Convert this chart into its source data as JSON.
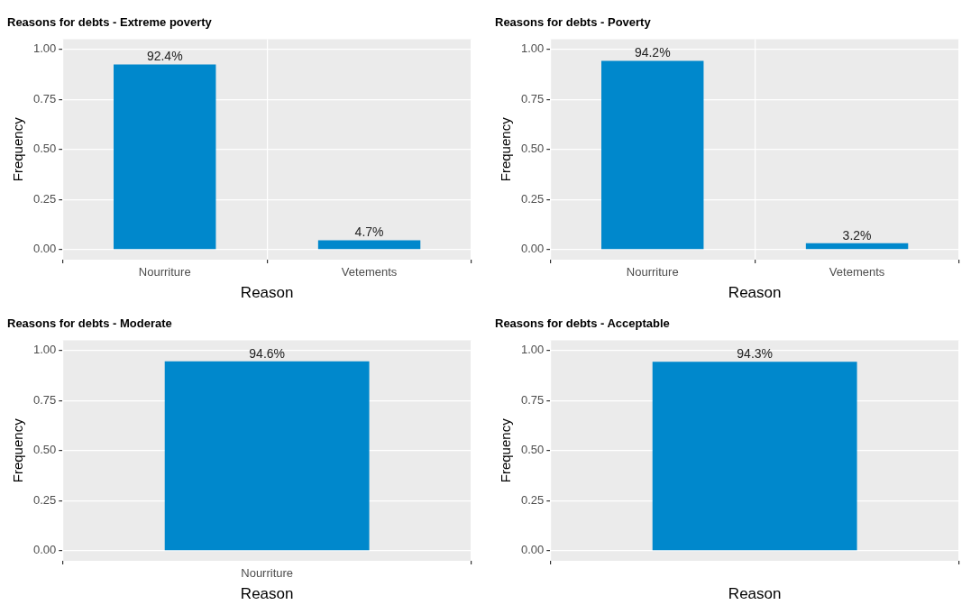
{
  "chart_data": [
    {
      "type": "bar",
      "title": "Reasons for debts - Extreme poverty",
      "xlabel": "Reason",
      "ylabel": "Frequency",
      "categories": [
        "Nourriture",
        "Vetements"
      ],
      "values": [
        0.924,
        0.047
      ],
      "value_labels": [
        "92.4%",
        "4.7%"
      ],
      "color": "#0088cc",
      "ylim": [
        -0.05,
        1.05
      ],
      "yticks": [
        {
          "value": 0,
          "label": "0.00"
        },
        {
          "value": 0.25,
          "label": "0.25"
        },
        {
          "value": 0.5,
          "label": "0.50"
        },
        {
          "value": 0.75,
          "label": "0.75"
        },
        {
          "value": 1,
          "label": "1.00"
        }
      ],
      "grid": true,
      "legend": false
    },
    {
      "type": "bar",
      "title": "Reasons for debts - Poverty",
      "xlabel": "Reason",
      "ylabel": "Frequency",
      "categories": [
        "Nourriture",
        "Vetements"
      ],
      "values": [
        0.942,
        0.032
      ],
      "value_labels": [
        "94.2%",
        "3.2%"
      ],
      "color": "#0088cc",
      "ylim": [
        -0.05,
        1.05
      ],
      "yticks": [
        {
          "value": 0,
          "label": "0.00"
        },
        {
          "value": 0.25,
          "label": "0.25"
        },
        {
          "value": 0.5,
          "label": "0.50"
        },
        {
          "value": 0.75,
          "label": "0.75"
        },
        {
          "value": 1,
          "label": "1.00"
        }
      ],
      "grid": true,
      "legend": false
    },
    {
      "type": "bar",
      "title": "Reasons for debts - Moderate",
      "xlabel": "Reason",
      "ylabel": "Frequency",
      "categories": [
        "Nourriture"
      ],
      "values": [
        0.946
      ],
      "value_labels": [
        "94.6%"
      ],
      "color": "#0088cc",
      "ylim": [
        -0.05,
        1.05
      ],
      "yticks": [
        {
          "value": 0,
          "label": "0.00"
        },
        {
          "value": 0.25,
          "label": "0.25"
        },
        {
          "value": 0.5,
          "label": "0.50"
        },
        {
          "value": 0.75,
          "label": "0.75"
        },
        {
          "value": 1,
          "label": "1.00"
        }
      ],
      "grid": true,
      "legend": false
    },
    {
      "type": "bar",
      "title": "Reasons for debts - Acceptable",
      "xlabel": "Reason",
      "ylabel": "Frequency",
      "categories": [
        null
      ],
      "values": [
        0.943
      ],
      "value_labels": [
        "94.3%"
      ],
      "color": "#0088cc",
      "ylim": [
        -0.05,
        1.05
      ],
      "yticks": [
        {
          "value": 0,
          "label": "0.00"
        },
        {
          "value": 0.25,
          "label": "0.25"
        },
        {
          "value": 0.5,
          "label": "0.50"
        },
        {
          "value": 0.75,
          "label": "0.75"
        },
        {
          "value": 1,
          "label": "1.00"
        }
      ],
      "grid": true,
      "legend": false
    }
  ]
}
